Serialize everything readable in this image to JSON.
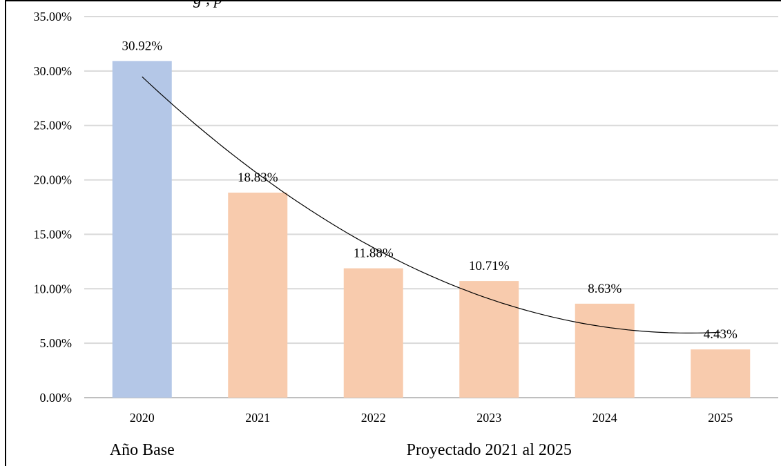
{
  "chart_data": {
    "type": "bar",
    "title_fragment": "g                 , p",
    "categories": [
      "2020",
      "2021",
      "2022",
      "2023",
      "2024",
      "2025"
    ],
    "values": [
      30.92,
      18.83,
      11.88,
      10.71,
      8.63,
      4.43
    ],
    "data_labels": [
      "30.92%",
      "18.83%",
      "11.88%",
      "10.71%",
      "8.63%",
      "4.43%"
    ],
    "y_ticks": [
      "0.00%",
      "5.00%",
      "10.00%",
      "15.00%",
      "20.00%",
      "25.00%",
      "30.00%",
      "35.00%"
    ],
    "ylim": [
      0,
      35
    ],
    "grid": true,
    "trendline": "polynomial",
    "groups": [
      {
        "label": "Año Base",
        "categories": [
          "2020"
        ]
      },
      {
        "label": "Proyectado 2021 al 2025",
        "categories": [
          "2021",
          "2022",
          "2023",
          "2024",
          "2025"
        ]
      }
    ],
    "colors": {
      "base": "#b4c7e7",
      "projected": "#f8cbad",
      "grid": "#d9d9d9",
      "trend": "#000000"
    }
  }
}
